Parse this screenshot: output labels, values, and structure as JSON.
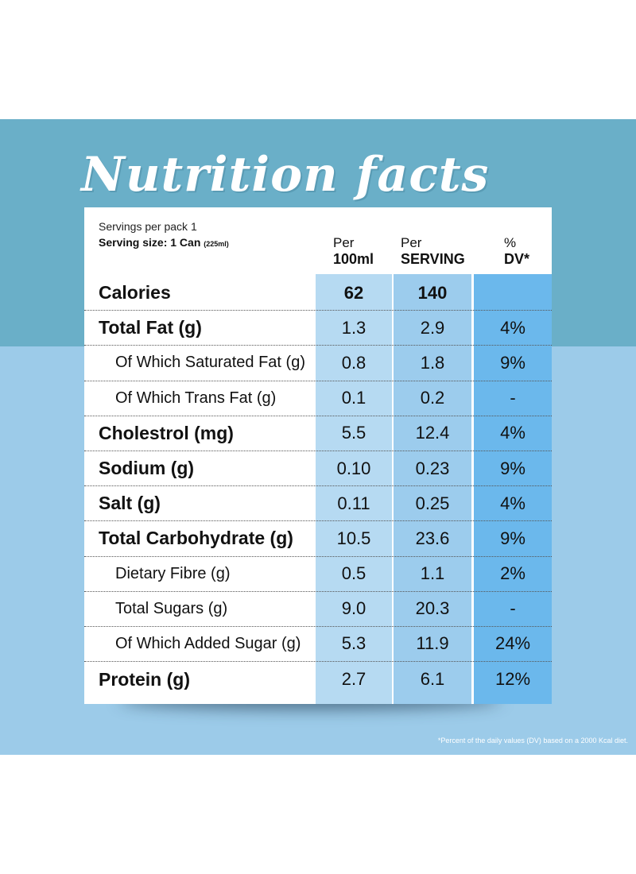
{
  "title": "Nutrition facts",
  "header": {
    "servings": "Servings per pack 1",
    "serving_size": "Serving size: 1 Can",
    "serving_size_ml": "(225ml)",
    "col_100_top": "Per",
    "col_100_bottom": "100ml",
    "col_serv_top": "Per",
    "col_serv_bottom": "SERVING",
    "col_dv_top": "%",
    "col_dv_bottom": "DV*"
  },
  "rows": [
    {
      "label": "Calories",
      "per100": "62",
      "serving": "140",
      "dv": ""
    },
    {
      "label": "Total Fat (g)",
      "per100": "1.3",
      "serving": "2.9",
      "dv": "4%"
    },
    {
      "label": "Of Which Saturated Fat (g)",
      "per100": "0.8",
      "serving": "1.8",
      "dv": "9%"
    },
    {
      "label": "Of Which Trans Fat (g)",
      "per100": "0.1",
      "serving": "0.2",
      "dv": "-"
    },
    {
      "label": "Cholestrol (mg)",
      "per100": "5.5",
      "serving": "12.4",
      "dv": "4%"
    },
    {
      "label": "Sodium (g)",
      "per100": "0.10",
      "serving": "0.23",
      "dv": "9%"
    },
    {
      "label": "Salt (g)",
      "per100": "0.11",
      "serving": "0.25",
      "dv": "4%"
    },
    {
      "label": "Total Carbohydrate (g)",
      "per100": "10.5",
      "serving": "23.6",
      "dv": "9%"
    },
    {
      "label": "Dietary Fibre (g)",
      "per100": "0.5",
      "serving": "1.1",
      "dv": "2%"
    },
    {
      "label": "Total Sugars (g)",
      "per100": "9.0",
      "serving": "20.3",
      "dv": "-"
    },
    {
      "label": "Of Which Added Sugar (g)",
      "per100": "5.3",
      "serving": "11.9",
      "dv": "24%"
    },
    {
      "label": "Protein (g)",
      "per100": "2.7",
      "serving": "6.1",
      "dv": "12%"
    }
  ],
  "footnote": "*Percent of the daily values (DV) based on a 2000 Kcal diet.",
  "colors": {
    "band_top": "#6aafc8",
    "band_bottom": "#9ccbe9",
    "col_100": "#b6daf2",
    "col_serving": "#9ccced",
    "col_dv": "#6bb8ec"
  }
}
